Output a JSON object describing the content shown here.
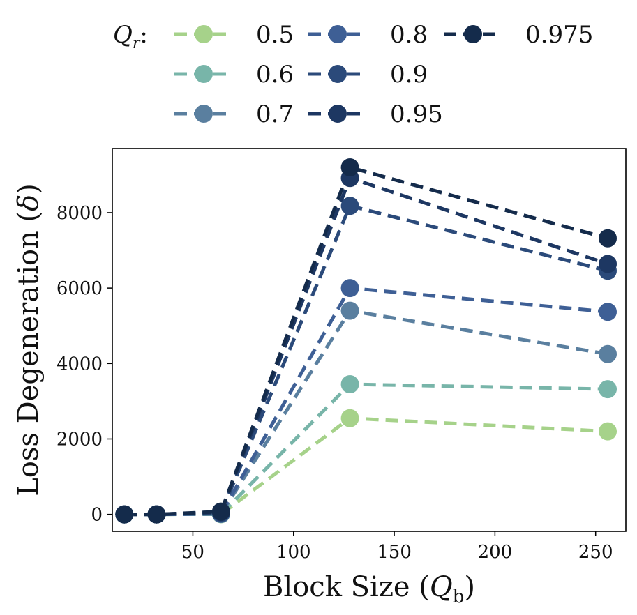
{
  "chart_data": {
    "type": "line",
    "title": "",
    "xlabel_main": "Block Size (",
    "xlabel_var": "Q",
    "xlabel_sub": "b",
    "xlabel_close": ")",
    "ylabel_main": "Loss Degeneration (",
    "ylabel_var": "δ",
    "ylabel_close": ")",
    "legend_title_var": "Q",
    "legend_title_sub": "r",
    "legend_title_colon": ":",
    "legend_position": "top",
    "xlim": [
      10,
      265
    ],
    "ylim": [
      -450,
      9700
    ],
    "xticks": [
      "50",
      "100",
      "150",
      "200",
      "250"
    ],
    "yticks": [
      "0",
      "2000",
      "4000",
      "6000",
      "8000"
    ],
    "x": [
      16,
      32,
      64,
      128,
      256
    ],
    "series": [
      {
        "name": "0.5",
        "color": "#a6d28a",
        "values": [
          0,
          0,
          5,
          2550,
          2200
        ]
      },
      {
        "name": "0.6",
        "color": "#78b5a9",
        "values": [
          0,
          0,
          8,
          3450,
          3320
        ]
      },
      {
        "name": "0.7",
        "color": "#5a7f9f",
        "values": [
          0,
          0,
          12,
          5400,
          4250
        ]
      },
      {
        "name": "0.8",
        "color": "#3e5f95",
        "values": [
          0,
          0,
          20,
          6000,
          5370
        ]
      },
      {
        "name": "0.9",
        "color": "#2b4a7a",
        "values": [
          0,
          0,
          40,
          8180,
          6460
        ]
      },
      {
        "name": "0.95",
        "color": "#1d3762",
        "values": [
          0,
          0,
          60,
          8920,
          6640
        ]
      },
      {
        "name": "0.975",
        "color": "#142b4b",
        "values": [
          0,
          0,
          75,
          9200,
          7320
        ]
      }
    ]
  }
}
